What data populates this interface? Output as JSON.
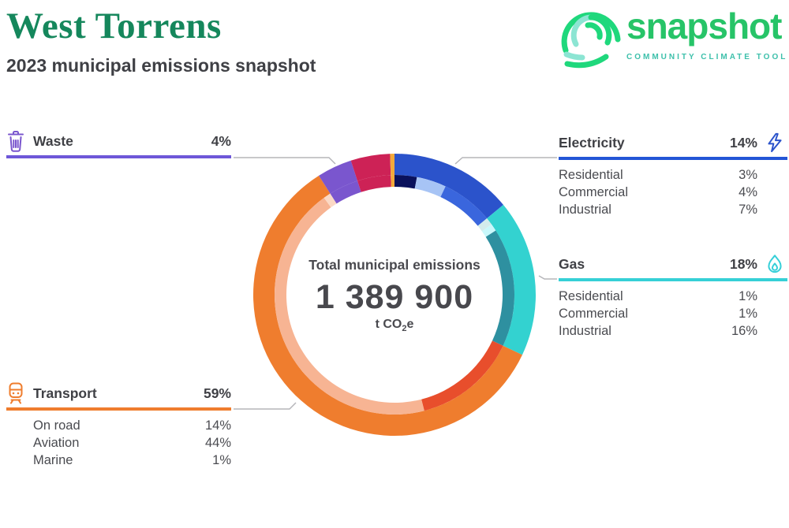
{
  "header": {
    "title": "West Torrens",
    "subtitle": "2023 municipal emissions snapshot",
    "title_color": "#15875c"
  },
  "logo": {
    "wordmark": "snapshot",
    "tagline": "COMMUNITY CLIMATE TOOL",
    "green": "#27c468",
    "teal": "#3ec0ab"
  },
  "center": {
    "label": "Total municipal emissions",
    "value": "1 389 900",
    "unit_pre": "t CO",
    "unit_sub": "2",
    "unit_post": "e"
  },
  "chart_data": {
    "type": "donut",
    "title": "Total municipal emissions",
    "total": "1 389 900",
    "unit": "t CO2e",
    "start_angle_deg": 0,
    "direction": "clockwise",
    "rings": [
      "outer: category totals",
      "inner: sub-sector breakdown"
    ],
    "categories": [
      {
        "name": "Electricity",
        "pct": 14,
        "pct_label": "14%",
        "color": "#2b53cb",
        "underline": "#2355d6",
        "subs": [
          {
            "name": "Residential",
            "pct": 3,
            "pct_label": "3%",
            "color": "#0a115c"
          },
          {
            "name": "Commercial",
            "pct": 4,
            "pct_label": "4%",
            "color": "#a7c4f5"
          },
          {
            "name": "Industrial",
            "pct": 7,
            "pct_label": "7%",
            "color": "#3a66dd"
          }
        ]
      },
      {
        "name": "Gas",
        "pct": 18,
        "pct_label": "18%",
        "color": "#33d2d0",
        "underline": "#36d0d6",
        "subs": [
          {
            "name": "Residential",
            "pct": 1,
            "pct_label": "1%",
            "color": "#d3ecec"
          },
          {
            "name": "Commercial",
            "pct": 1,
            "pct_label": "1%",
            "color": "#c9f8fb"
          },
          {
            "name": "Industrial",
            "pct": 16,
            "pct_label": "16%",
            "color": "#2e90a0"
          }
        ]
      },
      {
        "name": "Transport",
        "pct": 59,
        "pct_label": "59%",
        "color": "#ef7d2e",
        "underline": "#ef7d2e",
        "subs": [
          {
            "name": "On road",
            "pct": 14,
            "pct_label": "14%",
            "color": "#e84e2c"
          },
          {
            "name": "Aviation",
            "pct": 44,
            "pct_label": "44%",
            "color": "#f7b493"
          },
          {
            "name": "Marine",
            "pct": 1,
            "pct_label": "1%",
            "color": "#fbd9c5"
          }
        ]
      },
      {
        "name": "Waste",
        "pct": 4,
        "pct_label": "4%",
        "color": "#7a56ce",
        "underline": "#6e57d8",
        "subs": []
      },
      {
        "name": "",
        "pct": 4.5,
        "pct_label": "",
        "color": "#cd2256",
        "subs": []
      },
      {
        "name": "",
        "pct": 0.5,
        "pct_label": "",
        "color": "#f2a93b",
        "subs": []
      }
    ]
  }
}
